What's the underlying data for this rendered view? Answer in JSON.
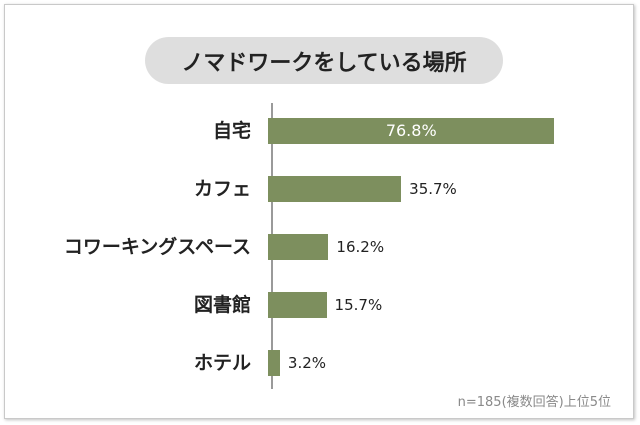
{
  "chart_data": {
    "type": "bar",
    "orientation": "horizontal",
    "title": "ノマドワークをしている場所",
    "categories": [
      "自宅",
      "カフェ",
      "コワーキングスペース",
      "図書館",
      "ホテル"
    ],
    "values": [
      76.8,
      35.7,
      16.2,
      15.7,
      3.2
    ],
    "value_labels": [
      "76.8%",
      "35.7%",
      "16.2%",
      "15.7%",
      "3.2%"
    ],
    "xlim": [
      0,
      100
    ],
    "grid": false,
    "bar_color": "#7d8f5e",
    "note": "n=185(複数回答)上位5位"
  }
}
